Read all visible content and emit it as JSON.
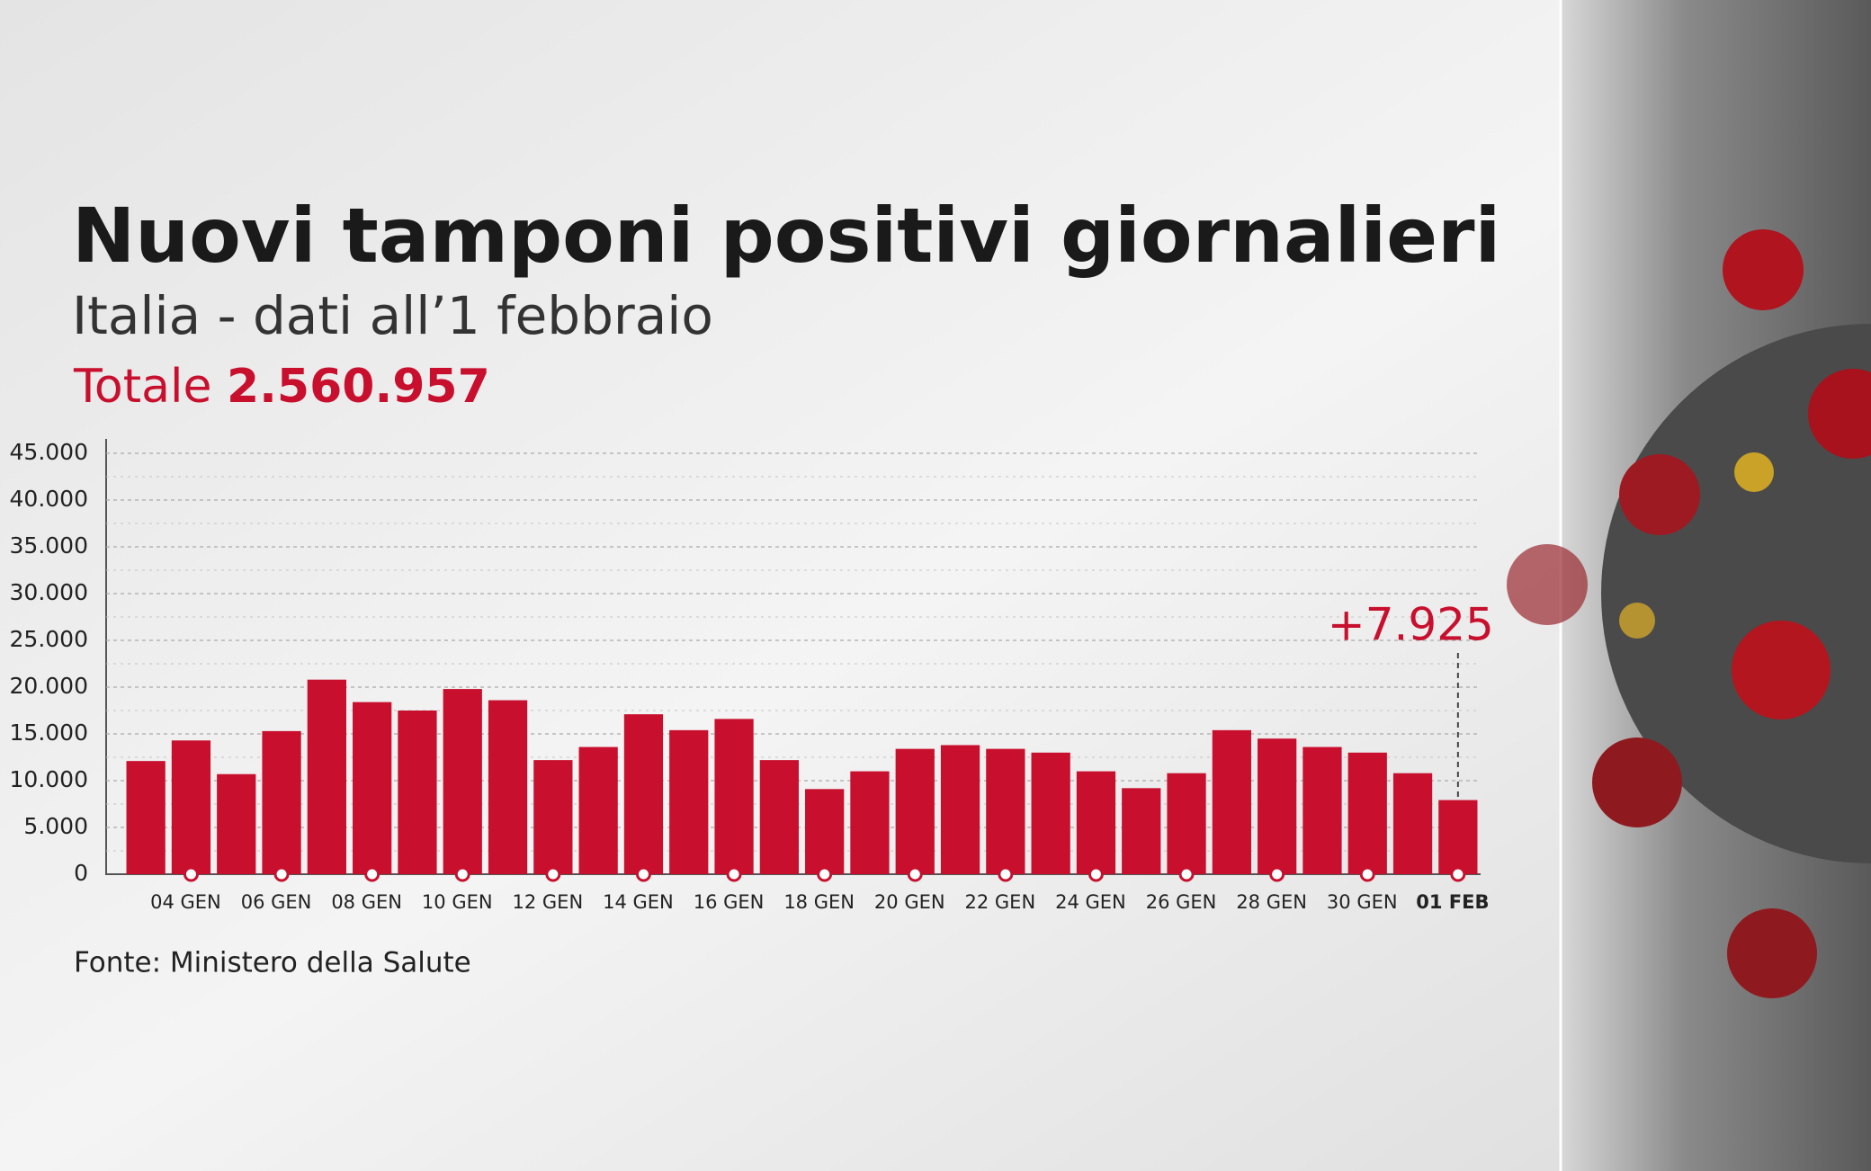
{
  "chart_data": {
    "type": "bar",
    "title": "Nuovi tamponi positivi giornalieri",
    "subtitle": "Italia - dati all’1 febbraio",
    "total_label": "Totale",
    "total": "2.560.957",
    "source": "Fonte: Ministero della Salute",
    "categories": [
      null,
      "04 GEN",
      null,
      "06 GEN",
      null,
      "08 GEN",
      null,
      "10 GEN",
      null,
      "12 GEN",
      null,
      "14 GEN",
      null,
      "16 GEN",
      null,
      "18 GEN",
      null,
      "20 GEN",
      null,
      "22 GEN",
      null,
      "24 GEN",
      null,
      "26 GEN",
      null,
      "28 GEN",
      null,
      "30 GEN",
      null,
      "01 FEB"
    ],
    "values": [
      12100,
      14300,
      10700,
      15300,
      20800,
      18400,
      17500,
      19800,
      18600,
      12200,
      13600,
      17100,
      15400,
      16600,
      12200,
      9100,
      11000,
      13400,
      13800,
      13400,
      13000,
      11000,
      9200,
      10800,
      15400,
      14500,
      13600,
      13000,
      10800,
      7925
    ],
    "value_labels": [
      null,
      null,
      null,
      null,
      null,
      null,
      null,
      null,
      null,
      null,
      null,
      null,
      null,
      null,
      null,
      null,
      null,
      null,
      null,
      null,
      null,
      null,
      null,
      null,
      null,
      null,
      null,
      null,
      null,
      "+7.925"
    ],
    "color": "#c8102e",
    "ylim": [
      0,
      45000
    ],
    "yticks": [
      0,
      {
        "value": 5000,
        "label": "5.000"
      },
      {
        "value": 10000,
        "label": "10.000"
      },
      {
        "value": 15000,
        "label": "15.000"
      },
      {
        "value": 20000,
        "label": "20.000"
      },
      {
        "value": 25000,
        "label": "25.000"
      },
      {
        "value": 30000,
        "label": "30.000"
      },
      {
        "value": 35000,
        "label": "35.000"
      },
      {
        "value": 40000,
        "label": "40.000"
      },
      {
        "value": 45000,
        "label": "45.000"
      }
    ],
    "grid": true
  }
}
